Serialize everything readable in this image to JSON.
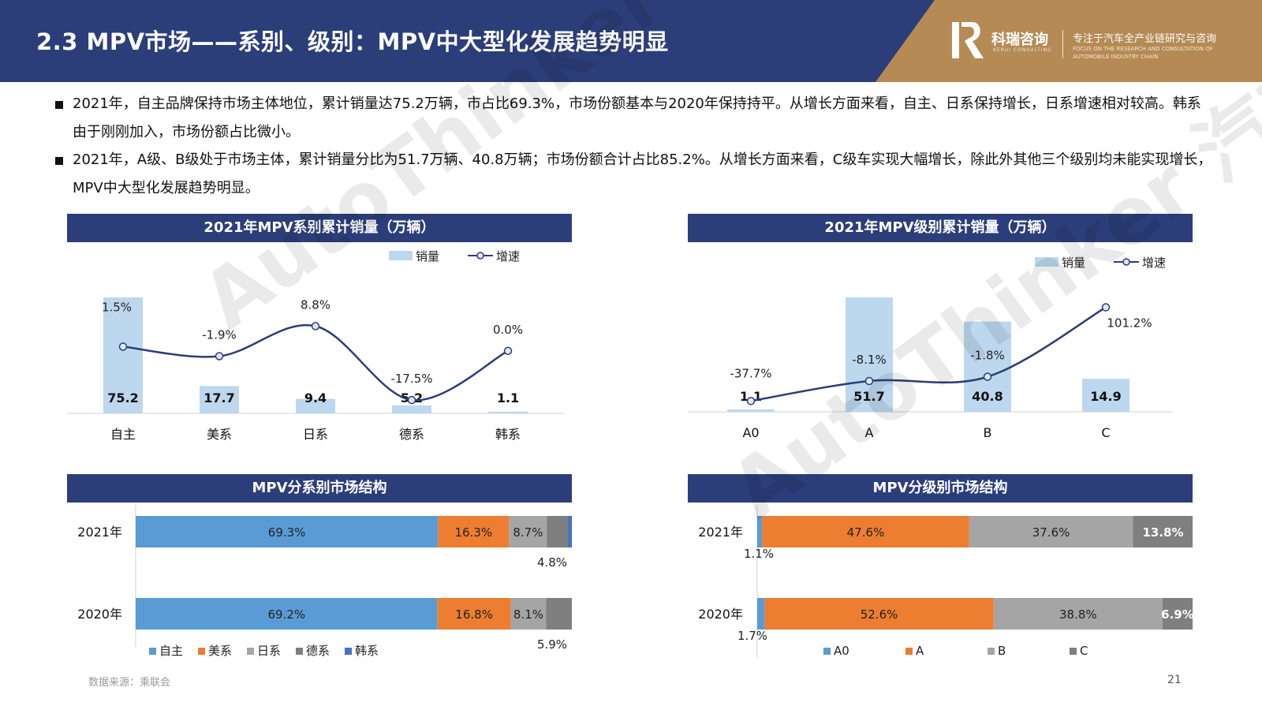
{
  "header": {
    "title": "2.3 MPV市场——系别、级别：MPV中大型化发展趋势明显",
    "logo_name": "科瑞咨询",
    "logo_sub": "KERUI CONSULTING",
    "tagline": "专注于汽车全产业链研究与咨询",
    "tagline_en": "FOCUS ON THE RESEARCH AND CONSULTATION OF AUTOMOBILE INDUSTRY CHAIN",
    "bg_color": "#2c3e7a",
    "accent_color": "#b58a55"
  },
  "bullets": [
    "2021年，自主品牌保持市场主体地位，累计销量达75.2万辆，市占比69.3%，市场份额基本与2020年保持持平。从增长方面来看，自主、日系保持增长，日系增速相对较高。韩系由于刚刚加入，市场份额占比微小。",
    "2021年，A级、B级处于市场主体，累计销量分比为51.7万辆、40.8万辆；市场份额合计占比85.2%。从增长方面来看，C级车实现大幅增长，除此外其他三个级别均未能实现增长，MPV中大型化发展趋势明显。"
  ],
  "panels": {
    "p1": "2021年MPV系别累计销量（万辆）",
    "p2": "2021年MPV级别累计销量（万辆）",
    "p3": "MPV分系别市场结构",
    "p4": "MPV分级别市场结构"
  },
  "chart_data": [
    {
      "type": "bar",
      "title": "2021年MPV系别累计销量（万辆）",
      "categories": [
        "自主",
        "美系",
        "日系",
        "德系",
        "韩系"
      ],
      "series": [
        {
          "name": "销量",
          "values": [
            75.2,
            17.7,
            9.4,
            5.2,
            1.1
          ],
          "labels": [
            "75.2",
            "17.7",
            "9.4",
            "5.2",
            "1.1"
          ],
          "color": "#bdd7ee"
        },
        {
          "name": "增速",
          "values": [
            1.5,
            -1.9,
            8.8,
            -17.5,
            0.0
          ],
          "labels": [
            "1.5%",
            "-1.9%",
            "8.8%",
            "-17.5%",
            "0.0%"
          ],
          "color": "#2c3e7a"
        }
      ],
      "ylim_bar": [
        0,
        75.2
      ],
      "ylim_line": [
        -20,
        12
      ],
      "legend": "top-right"
    },
    {
      "type": "bar",
      "title": "2021年MPV级别累计销量（万辆）",
      "categories": [
        "A0",
        "A",
        "B",
        "C"
      ],
      "series": [
        {
          "name": "销量",
          "values": [
            1.1,
            51.7,
            40.8,
            14.9
          ],
          "labels": [
            "1.1",
            "51.7",
            "40.8",
            "14.9"
          ],
          "color": "#bdd7ee"
        },
        {
          "name": "增速",
          "values": [
            -37.7,
            -8.1,
            -1.8,
            101.2
          ],
          "labels": [
            "-37.7%",
            "-8.1%",
            "-1.8%",
            "101.2%"
          ],
          "color": "#2c3e7a"
        }
      ],
      "ylim_bar": [
        0,
        51.7
      ],
      "ylim_line": [
        -42,
        103
      ],
      "legend": "top-right"
    },
    {
      "type": "bar",
      "stacked": true,
      "orientation": "horizontal",
      "title": "MPV分系别市场结构",
      "categories": [
        "2021年",
        "2020年"
      ],
      "series": [
        {
          "name": "自主",
          "values": [
            69.3,
            69.2
          ],
          "color": "#5b9bd5"
        },
        {
          "name": "美系",
          "values": [
            16.3,
            16.8
          ],
          "color": "#ed7d31"
        },
        {
          "name": "日系",
          "values": [
            8.7,
            8.1
          ],
          "color": "#a5a5a5"
        },
        {
          "name": "德系",
          "values": [
            4.8,
            5.9
          ],
          "color": "#7f7f7f"
        },
        {
          "name": "韩系",
          "values": [
            0.9,
            0.0
          ],
          "color": "#4472c4"
        }
      ],
      "labels": [
        [
          "69.3%",
          "16.3%",
          "8.7%",
          "4.8%",
          ""
        ],
        [
          "69.2%",
          "16.8%",
          "8.1%",
          "5.9%",
          ""
        ]
      ],
      "legend": "bottom"
    },
    {
      "type": "bar",
      "stacked": true,
      "orientation": "horizontal",
      "title": "MPV分级别市场结构",
      "categories": [
        "2021年",
        "2020年"
      ],
      "series": [
        {
          "name": "A0",
          "values": [
            1.1,
            1.7
          ],
          "color": "#5b9bd5"
        },
        {
          "name": "A",
          "values": [
            47.6,
            52.6
          ],
          "color": "#ed7d31"
        },
        {
          "name": "B",
          "values": [
            37.6,
            38.8
          ],
          "color": "#a5a5a5"
        },
        {
          "name": "C",
          "values": [
            13.8,
            6.9
          ],
          "color": "#7f7f7f"
        }
      ],
      "labels": [
        [
          "1.1%",
          "47.6%",
          "37.6%",
          "13.8%"
        ],
        [
          "1.7%",
          "52.6%",
          "38.8%",
          "6.9%"
        ]
      ],
      "legend": "bottom"
    }
  ],
  "footer": {
    "source": "数据来源：乘联会",
    "page": "21"
  },
  "watermark": "AutoThinker 汽车智库平台"
}
